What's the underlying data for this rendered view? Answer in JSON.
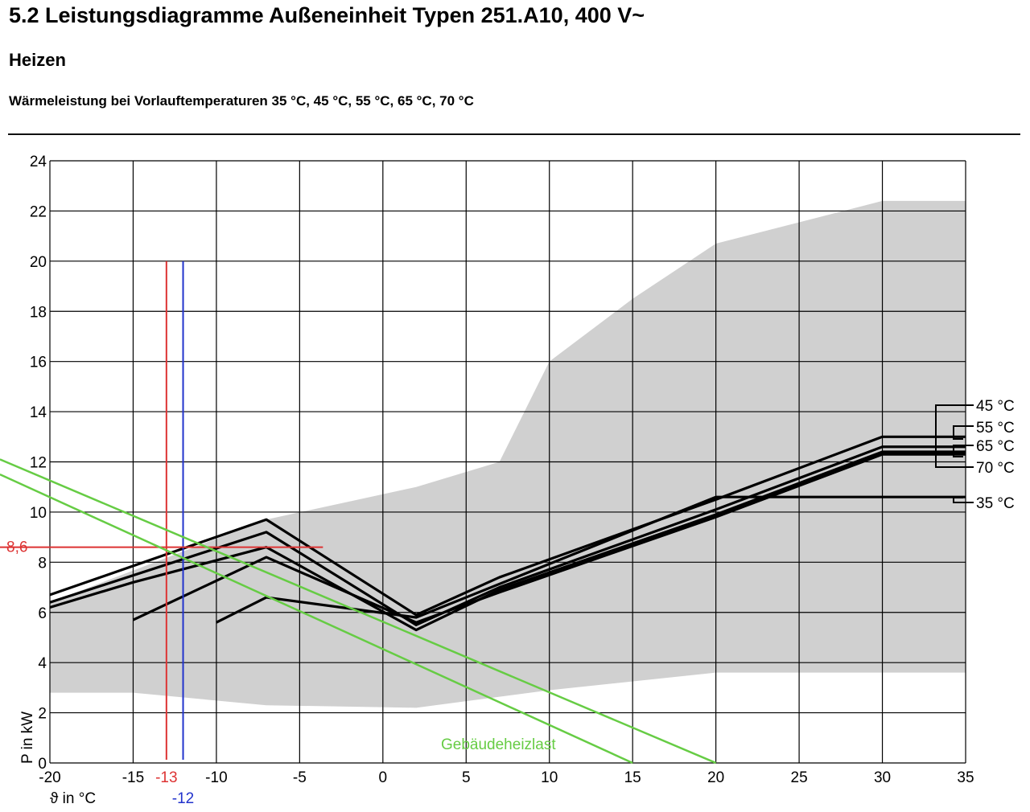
{
  "header": {
    "title": "5.2 Leistungsdiagramme Außeneinheit Typen 251.A10, 400 V~",
    "section": "Heizen",
    "caption": "Wärmeleistung bei Vorlauftemperaturen 35 °C, 45 °C, 55 °C, 65 °C, 70 °C"
  },
  "chart_data": {
    "type": "line",
    "xlabel": "ϑ in °C",
    "ylabel": "P in kW",
    "xlim": [
      -20,
      35
    ],
    "ylim": [
      0,
      24
    ],
    "xticks": [
      -20,
      -15,
      -10,
      -5,
      0,
      5,
      10,
      15,
      20,
      25,
      30,
      35
    ],
    "yticks": [
      0,
      2,
      4,
      6,
      8,
      10,
      12,
      14,
      16,
      18,
      20,
      22,
      24
    ],
    "grid": true,
    "operating_range": {
      "upper": [
        [
          -20,
          6.4
        ],
        [
          -7,
          9.7
        ],
        [
          2,
          11.0
        ],
        [
          7,
          12.0
        ],
        [
          10,
          16.0
        ],
        [
          15,
          18.5
        ],
        [
          20,
          20.7
        ],
        [
          30,
          22.4
        ],
        [
          35,
          22.4
        ]
      ],
      "lower": [
        [
          -20,
          2.8
        ],
        [
          -15,
          2.8
        ],
        [
          -7,
          2.3
        ],
        [
          2,
          2.2
        ],
        [
          10,
          2.9
        ],
        [
          20,
          3.6
        ],
        [
          35,
          3.6
        ]
      ],
      "color": "#d0d0d0"
    },
    "series": [
      {
        "name": "45 °C",
        "points": [
          [
            -20,
            6.7
          ],
          [
            -7,
            9.7
          ],
          [
            2,
            5.9
          ],
          [
            7,
            7.4
          ],
          [
            20,
            10.5
          ],
          [
            30,
            13.0
          ],
          [
            35,
            13.0
          ]
        ]
      },
      {
        "name": "55 °C",
        "points": [
          [
            -20,
            6.4
          ],
          [
            -7,
            9.2
          ],
          [
            2,
            5.5
          ],
          [
            7,
            7.0
          ],
          [
            20,
            10.1
          ],
          [
            30,
            12.6
          ],
          [
            35,
            12.6
          ]
        ]
      },
      {
        "name": "65 °C",
        "points": [
          [
            -20,
            6.2
          ],
          [
            -15,
            7.2
          ],
          [
            -7,
            8.6
          ],
          [
            2,
            5.3
          ],
          [
            7,
            6.9
          ],
          [
            20,
            9.9
          ],
          [
            30,
            12.4
          ],
          [
            35,
            12.4
          ]
        ]
      },
      {
        "name": "70 °C",
        "points": [
          [
            -15,
            5.7
          ],
          [
            -7,
            8.2
          ],
          [
            2,
            5.6
          ],
          [
            7,
            6.8
          ],
          [
            20,
            9.8
          ],
          [
            30,
            12.3
          ],
          [
            35,
            12.3
          ]
        ]
      },
      {
        "name": "35 °C",
        "points": [
          [
            -10,
            5.6
          ],
          [
            -7,
            6.6
          ],
          [
            2,
            5.8
          ],
          [
            20,
            10.6
          ],
          [
            35,
            10.6
          ]
        ]
      }
    ],
    "building_load": {
      "label": "Gebäudeheizlast",
      "color": "#66cc44",
      "lines": [
        [
          [
            -23,
            11.5
          ],
          [
            15,
            0
          ]
        ],
        [
          [
            -23,
            12.1
          ],
          [
            20,
            0
          ]
        ]
      ]
    },
    "markers": {
      "red_x": -13,
      "red_x_label": "-13",
      "red_y": 8.6,
      "red_y_label": "8,6",
      "red_y_end_x": -3.6,
      "blue_x": -12,
      "blue_x_label": "-12",
      "vline_top": 20,
      "red_color": "#dd3333",
      "blue_color": "#2233cc"
    }
  }
}
